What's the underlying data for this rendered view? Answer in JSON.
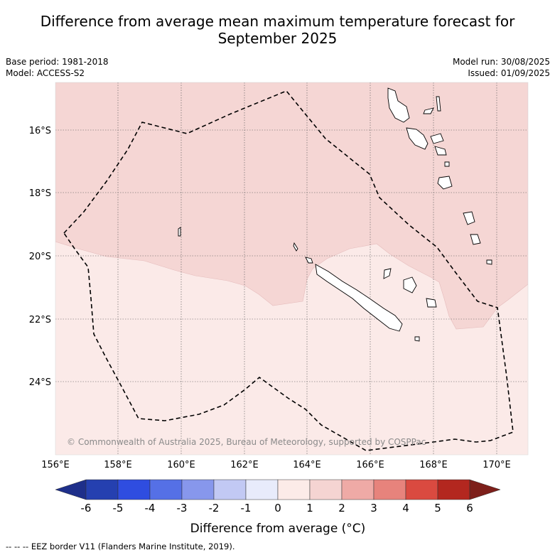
{
  "title": {
    "line1": "Difference from average mean maximum temperature forecast for",
    "line2": "September 2025"
  },
  "meta_left": {
    "base_period": "Base period: 1981-2018",
    "model": "Model: ACCESS-S2"
  },
  "meta_right": {
    "model_run": "Model run: 30/08/2025",
    "issued": "Issued: 01/09/2025"
  },
  "map": {
    "lat_labels": [
      "16°S",
      "18°S",
      "20°S",
      "22°S",
      "24°S"
    ],
    "lon_labels": [
      "156°E",
      "158°E",
      "160°E",
      "162°E",
      "164°E",
      "166°E",
      "168°E",
      "170°E"
    ],
    "copyright": "© Commonwealth of Australia 2025, Bureau of Meteorology, supported by COSPPac",
    "region_colors": {
      "zero_to_one": "#fbeae8",
      "one_to_two": "#f5d6d4"
    }
  },
  "colorbar": {
    "tick_labels": [
      "-6",
      "-5",
      "-4",
      "-3",
      "-2",
      "-1",
      "0",
      "1",
      "2",
      "3",
      "4",
      "5",
      "6"
    ],
    "colors": [
      "#1e2f8a",
      "#2540b0",
      "#2f4de0",
      "#5570e6",
      "#8797ec",
      "#c2c9f4",
      "#e8ebfb",
      "#fcebe8",
      "#f5d4d2",
      "#efaaa6",
      "#e7837c",
      "#da4a40",
      "#b3271f",
      "#7d1f1a"
    ],
    "title": "Difference from average (°C)"
  },
  "footer": "-- -- -- EEZ border V11 (Flanders Marine Institute, 2019)."
}
